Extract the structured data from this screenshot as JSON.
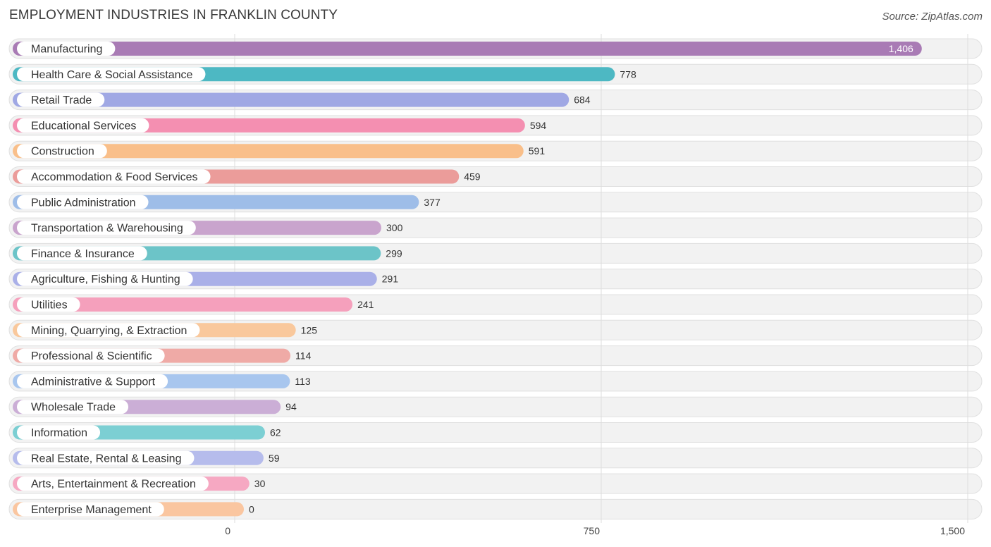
{
  "header": {
    "title": "EMPLOYMENT INDUSTRIES IN FRANKLIN COUNTY",
    "source": "Source: ZipAtlas.com"
  },
  "chart_data": {
    "type": "bar",
    "orientation": "horizontal",
    "title": "EMPLOYMENT INDUSTRIES IN FRANKLIN COUNTY",
    "xlabel": "",
    "ylabel": "",
    "xlim": [
      0,
      1500
    ],
    "ticks": [
      0,
      750,
      1500
    ],
    "tick_labels": [
      "0",
      "750",
      "1,500"
    ],
    "grid": true,
    "categories": [
      "Manufacturing",
      "Health Care & Social Assistance",
      "Retail Trade",
      "Educational Services",
      "Construction",
      "Accommodation & Food Services",
      "Public Administration",
      "Transportation & Warehousing",
      "Finance & Insurance",
      "Agriculture, Fishing & Hunting",
      "Utilities",
      "Mining, Quarrying, & Extraction",
      "Professional & Scientific",
      "Administrative & Support",
      "Wholesale Trade",
      "Information",
      "Real Estate, Rental & Leasing",
      "Arts, Entertainment & Recreation",
      "Enterprise Management"
    ],
    "values": [
      1406,
      778,
      684,
      594,
      591,
      459,
      377,
      300,
      299,
      291,
      241,
      125,
      114,
      113,
      94,
      62,
      59,
      30,
      0
    ],
    "value_labels": [
      "1,406",
      "778",
      "684",
      "594",
      "591",
      "459",
      "377",
      "300",
      "299",
      "291",
      "241",
      "125",
      "114",
      "113",
      "94",
      "62",
      "59",
      "30",
      "0"
    ],
    "colors": [
      "#a97bb5",
      "#4db8c3",
      "#a0a8e4",
      "#f48fb1",
      "#f9bf8a",
      "#eb9c9a",
      "#9ebde8",
      "#c9a4cd",
      "#6cc4c8",
      "#aab0e8",
      "#f5a0bc",
      "#f9c89c",
      "#efaaa6",
      "#a8c6ee",
      "#cbaed6",
      "#7ccfd3",
      "#b6bcec",
      "#f6a8c2",
      "#fac6a0"
    ]
  }
}
